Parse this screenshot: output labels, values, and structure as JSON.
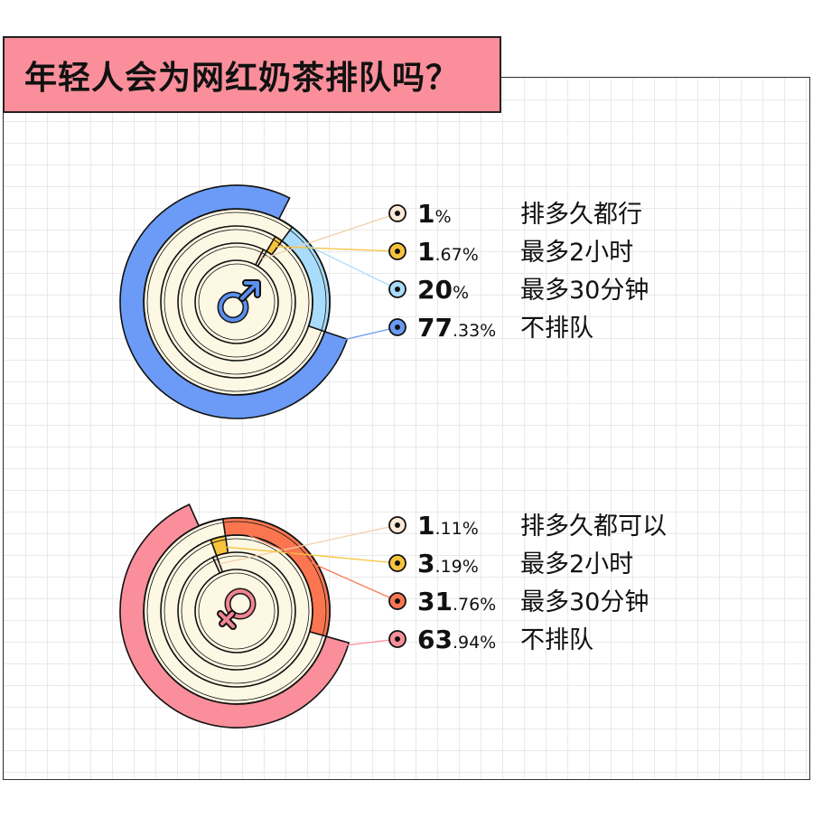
{
  "title": "年轻人会为网红奶茶排队吗？",
  "chart_data": [
    {
      "type": "pie",
      "name": "male",
      "icon": "male-symbol-icon",
      "icon_color": "#5b8ff0",
      "items": [
        {
          "label": "排多久都行",
          "value": 1,
          "whole": "1",
          "frac": "%",
          "color": "#fde9d6"
        },
        {
          "label": "最多2小时",
          "value": 1.67,
          "whole": "1",
          "frac": ".67%",
          "color": "#f7c33d"
        },
        {
          "label": "最多30分钟",
          "value": 20,
          "whole": "20",
          "frac": "%",
          "color": "#a9dcfb"
        },
        {
          "label": "不排队",
          "value": 77.33,
          "whole": "77",
          "frac": ".33%",
          "color": "#6b9bf6"
        }
      ]
    },
    {
      "type": "pie",
      "name": "female",
      "icon": "female-symbol-icon",
      "icon_color": "#f28592",
      "items": [
        {
          "label": "排多久都可以",
          "value": 1.11,
          "whole": "1",
          "frac": ".11%",
          "color": "#fde9d6"
        },
        {
          "label": "最多2小时",
          "value": 3.19,
          "whole": "3",
          "frac": ".19%",
          "color": "#f7c33d"
        },
        {
          "label": "最多30分钟",
          "value": 31.76,
          "whole": "31",
          "frac": ".76%",
          "color": "#fb7650"
        },
        {
          "label": "不排队",
          "value": 63.94,
          "whole": "63",
          "frac": ".94%",
          "color": "#fa8f9b"
        }
      ]
    }
  ]
}
